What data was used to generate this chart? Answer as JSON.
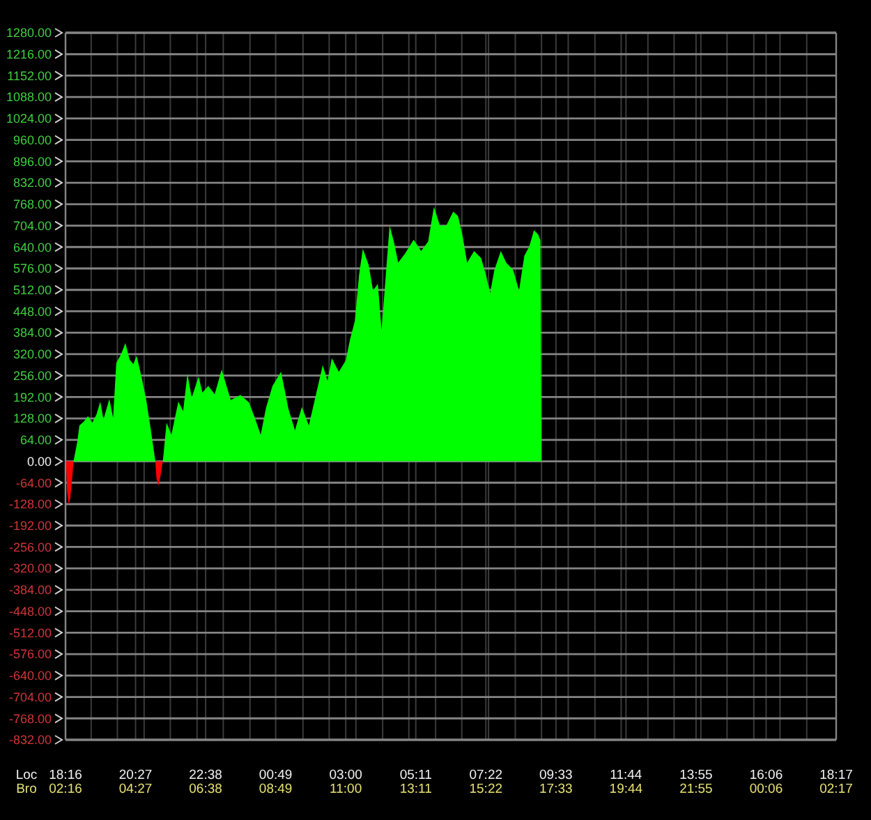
{
  "chart_data": {
    "type": "area",
    "xlabel": "Loc",
    "x2label": "Bro",
    "xlim": [
      "2000-01-01T18:16",
      "2000-01-02T18:17"
    ],
    "xticks": [
      {
        "value": "2000-01-01T18:16",
        "label": "18:16"
      },
      {
        "value": "2000-01-01T19:04",
        "label": null
      },
      {
        "value": "2000-01-01T19:53",
        "label": null
      },
      {
        "value": "2000-01-01T20:27",
        "label": "20:27"
      },
      {
        "value": "2000-01-01T20:43",
        "label": null
      },
      {
        "value": "2000-01-01T21:32",
        "label": null
      },
      {
        "value": "2000-01-01T22:22",
        "label": null
      },
      {
        "value": "2000-01-01T22:38",
        "label": "22:38"
      },
      {
        "value": "2000-01-01T23:11",
        "label": null
      },
      {
        "value": "2000-01-02T00:01",
        "label": null
      },
      {
        "value": "2000-01-02T00:49",
        "label": "00:49"
      },
      {
        "value": "2000-01-02T01:40",
        "label": null
      },
      {
        "value": "2000-01-02T02:29",
        "label": null
      },
      {
        "value": "2000-01-02T03:00",
        "label": "03:00"
      },
      {
        "value": "2000-01-02T03:19",
        "label": null
      },
      {
        "value": "2000-01-02T04:09",
        "label": null
      },
      {
        "value": "2000-01-02T04:58",
        "label": null
      },
      {
        "value": "2000-01-02T05:11",
        "label": "05:11"
      },
      {
        "value": "2000-01-02T05:48",
        "label": null
      },
      {
        "value": "2000-01-02T06:37",
        "label": null
      },
      {
        "value": "2000-01-02T07:22",
        "label": "07:22"
      },
      {
        "value": "2000-01-02T07:27",
        "label": null
      },
      {
        "value": "2000-01-02T08:17",
        "label": null
      },
      {
        "value": "2000-01-02T09:06",
        "label": null
      },
      {
        "value": "2000-01-02T09:33",
        "label": "09:33"
      },
      {
        "value": "2000-01-02T09:56",
        "label": null
      },
      {
        "value": "2000-01-02T10:46",
        "label": null
      },
      {
        "value": "2000-01-02T11:35",
        "label": null
      },
      {
        "value": "2000-01-02T11:44",
        "label": "11:44"
      },
      {
        "value": "2000-01-02T12:25",
        "label": null
      },
      {
        "value": "2000-01-02T13:14",
        "label": null
      },
      {
        "value": "2000-01-02T13:55",
        "label": "13:55"
      },
      {
        "value": "2000-01-02T14:04",
        "label": null
      },
      {
        "value": "2000-01-02T14:53",
        "label": null
      },
      {
        "value": "2000-01-02T15:43",
        "label": null
      },
      {
        "value": "2000-01-02T16:06",
        "label": "16:06"
      },
      {
        "value": "2000-01-02T16:32",
        "label": null
      },
      {
        "value": "2000-01-02T17:22",
        "label": null
      },
      {
        "value": "2000-01-02T18:17",
        "label": "18:17"
      }
    ],
    "x2lim": [
      "2000-01-02T02:16",
      "2000-01-03T02:17"
    ],
    "x2ticks": [
      {
        "value": "2000-01-02T02:16",
        "label": "02:16"
      },
      {
        "value": "2000-01-02T04:27",
        "label": "04:27"
      },
      {
        "value": "2000-01-02T06:38",
        "label": "06:38"
      },
      {
        "value": "2000-01-02T08:49",
        "label": "08:49"
      },
      {
        "value": "2000-01-02T11:00",
        "label": "11:00"
      },
      {
        "value": "2000-01-02T13:11",
        "label": "13:11"
      },
      {
        "value": "2000-01-02T15:22",
        "label": "15:22"
      },
      {
        "value": "2000-01-02T17:33",
        "label": "17:33"
      },
      {
        "value": "2000-01-02T19:44",
        "label": "19:44"
      },
      {
        "value": "2000-01-02T21:55",
        "label": "21:55"
      },
      {
        "value": "2000-01-03T00:06",
        "label": "00:06"
      },
      {
        "value": "2000-01-03T02:17",
        "label": "02:17"
      }
    ],
    "ylim": [
      -832,
      1280
    ],
    "yticks": [
      {
        "value": -832,
        "label": "-832.00"
      },
      {
        "value": -768,
        "label": "-768.00"
      },
      {
        "value": -704,
        "label": "-704.00"
      },
      {
        "value": -640,
        "label": "-640.00"
      },
      {
        "value": -576,
        "label": "-576.00"
      },
      {
        "value": -512,
        "label": "-512.00"
      },
      {
        "value": -448,
        "label": "-448.00"
      },
      {
        "value": -384,
        "label": "-384.00"
      },
      {
        "value": -320,
        "label": "-320.00"
      },
      {
        "value": -256,
        "label": "-256.00"
      },
      {
        "value": -192,
        "label": "-192.00"
      },
      {
        "value": -128,
        "label": "-128.00"
      },
      {
        "value": -64,
        "label": "-64.00"
      },
      {
        "value": 0,
        "label": "0.00"
      },
      {
        "value": 64,
        "label": "64.00"
      },
      {
        "value": 128,
        "label": "128.00"
      },
      {
        "value": 192,
        "label": "192.00"
      },
      {
        "value": 256,
        "label": "256.00"
      },
      {
        "value": 320,
        "label": "320.00"
      },
      {
        "value": 384,
        "label": "384.00"
      },
      {
        "value": 448,
        "label": "448.00"
      },
      {
        "value": 512,
        "label": "512.00"
      },
      {
        "value": 576,
        "label": "576.00"
      },
      {
        "value": 640,
        "label": "640.00"
      },
      {
        "value": 704,
        "label": "704.00"
      },
      {
        "value": 768,
        "label": "768.00"
      },
      {
        "value": 832,
        "label": "832.00"
      },
      {
        "value": 896,
        "label": "896.00"
      },
      {
        "value": 960,
        "label": "960.00"
      },
      {
        "value": 1024,
        "label": "1024.00"
      },
      {
        "value": 1088,
        "label": "1088.00"
      },
      {
        "value": 1152,
        "label": "1152.00"
      },
      {
        "value": 1216,
        "label": "1216.00"
      },
      {
        "value": 1280,
        "label": "1280.00"
      }
    ],
    "grid": true,
    "series": [
      {
        "color": "#00ff00",
        "x": [
          "2000-01-01T18:31",
          "2000-01-01T18:38",
          "2000-01-01T18:42",
          "2000-01-01T18:51",
          "2000-01-01T18:58",
          "2000-01-01T19:06",
          "2000-01-01T19:14",
          "2000-01-01T19:21",
          "2000-01-01T19:27",
          "2000-01-01T19:38",
          "2000-01-01T19:45",
          "2000-01-01T19:51",
          "2000-01-01T20:00",
          "2000-01-01T20:08",
          "2000-01-01T20:16",
          "2000-01-01T20:23",
          "2000-01-01T20:29",
          "2000-01-01T20:38",
          "2000-01-01T20:47",
          "2000-01-01T20:55",
          "2000-01-01T21:04",
          "2000-01-01T21:18",
          "2000-01-01T21:25",
          "2000-01-01T21:34",
          "2000-01-01T21:47",
          "2000-01-01T21:56",
          "2000-01-01T22:04",
          "2000-01-01T22:12",
          "2000-01-01T22:25",
          "2000-01-01T22:32",
          "2000-01-01T22:43",
          "2000-01-01T22:55",
          "2000-01-01T23:08",
          "2000-01-01T23:25",
          "2000-01-01T23:43",
          "2000-01-01T23:59",
          "2000-01-02T00:10",
          "2000-01-02T00:21",
          "2000-01-02T00:31",
          "2000-01-02T00:43",
          "2000-01-02T00:59",
          "2000-01-02T01:13",
          "2000-01-02T01:25",
          "2000-01-02T01:38",
          "2000-01-02T01:51",
          "2000-01-02T02:04",
          "2000-01-02T02:17",
          "2000-01-02T02:26",
          "2000-01-02T02:34",
          "2000-01-02T02:47",
          "2000-01-02T03:00",
          "2000-01-02T03:08",
          "2000-01-02T03:17",
          "2000-01-02T03:25",
          "2000-01-02T03:32",
          "2000-01-02T03:43",
          "2000-01-02T03:51",
          "2000-01-02T04:00",
          "2000-01-02T04:07",
          "2000-01-02T04:13",
          "2000-01-02T04:22",
          "2000-01-02T04:30",
          "2000-01-02T04:38",
          "2000-01-02T04:51",
          "2000-01-02T05:07",
          "2000-01-02T05:21",
          "2000-01-02T05:34",
          "2000-01-02T05:45",
          "2000-01-02T05:56",
          "2000-01-02T06:08",
          "2000-01-02T06:21",
          "2000-01-02T06:30",
          "2000-01-02T06:38",
          "2000-01-02T06:47",
          "2000-01-02T07:00",
          "2000-01-02T07:13",
          "2000-01-02T07:22",
          "2000-01-02T07:30",
          "2000-01-02T07:38",
          "2000-01-02T07:50",
          "2000-01-02T08:00",
          "2000-01-02T08:13",
          "2000-01-02T08:24",
          "2000-01-02T08:34",
          "2000-01-02T08:43",
          "2000-01-02T08:52",
          "2000-01-02T09:00",
          "2000-01-02T09:04",
          "2000-01-02T09:06"
        ],
        "values": [
          0,
          58,
          107,
          120,
          135,
          115,
          140,
          178,
          125,
          186,
          130,
          294,
          320,
          353,
          303,
          290,
          315,
          253,
          183,
          100,
          0,
          0,
          115,
          79,
          178,
          150,
          261,
          190,
          253,
          205,
          225,
          200,
          274,
          183,
          198,
          176,
          130,
          79,
          160,
          225,
          267,
          156,
          93,
          162,
          107,
          197,
          287,
          240,
          308,
          267,
          301,
          364,
          419,
          558,
          635,
          586,
          510,
          530,
          392,
          516,
          704,
          656,
          593,
          621,
          662,
          628,
          656,
          760,
          704,
          704,
          746,
          732,
          677,
          593,
          628,
          607,
          558,
          503,
          572,
          628,
          593,
          572,
          510,
          614,
          641,
          690,
          677,
          660,
          0
        ]
      },
      {
        "color": "#ff0000",
        "x": [
          "2000-01-01T18:17",
          "2000-01-01T18:19",
          "2000-01-01T18:22",
          "2000-01-01T18:25",
          "2000-01-01T18:28",
          "2000-01-01T18:31",
          "2000-01-01T18:48",
          "2000-01-01T21:04",
          "2000-01-01T21:06",
          "2000-01-01T21:10",
          "2000-01-01T21:14",
          "2000-01-01T21:18"
        ],
        "values": [
          0,
          -90,
          -130,
          -110,
          -60,
          0,
          null,
          0,
          -50,
          -73,
          -40,
          0
        ]
      }
    ]
  }
}
